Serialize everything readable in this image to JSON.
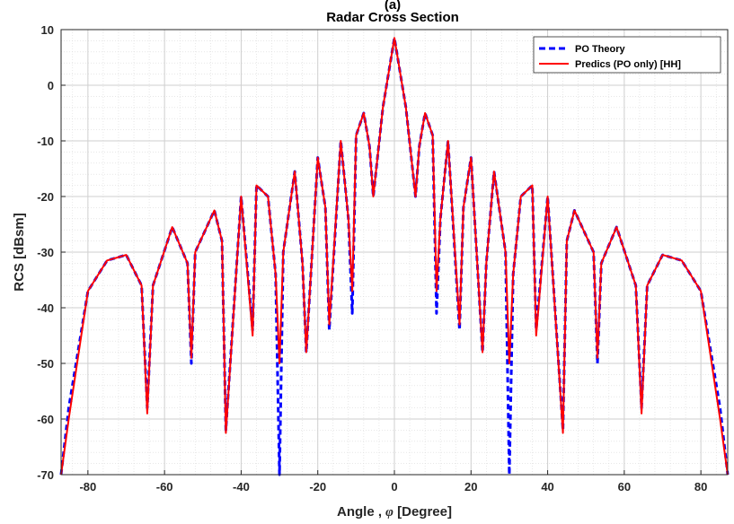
{
  "chart_data": {
    "type": "line",
    "top_label": "(a)",
    "title": "Radar Cross Section",
    "xlabel_prefix": "Angle , ",
    "xlabel_symbol": "φ",
    "xlabel_suffix": "  [Degree]",
    "ylabel": "RCS [dBsm]",
    "xlim": [
      -87,
      87
    ],
    "ylim": [
      -70,
      10
    ],
    "xticks": [
      -80,
      -60,
      -40,
      -20,
      0,
      20,
      40,
      60,
      80
    ],
    "yticks": [
      10,
      0,
      -10,
      -20,
      -30,
      -40,
      -50,
      -60,
      -70
    ],
    "grid": true,
    "minor_grid": true,
    "legend_position": "top-right",
    "series": [
      {
        "name": "PO Theory",
        "color": "#0000ff",
        "style": "dashed",
        "x": [
          -87,
          -85,
          -80,
          -75,
          -70,
          -66,
          -64.5,
          -63,
          -58,
          -54,
          -53,
          -52,
          -47,
          -45,
          -44,
          -40,
          -37,
          -36,
          -33,
          -31,
          -30,
          -29,
          -26,
          -24,
          -23,
          -20,
          -18,
          -17,
          -14,
          -12,
          -11,
          -10,
          -8,
          -6.5,
          -5.5,
          -3,
          0,
          3,
          5.5,
          6.5,
          8,
          10,
          11,
          12,
          14,
          17,
          18,
          20,
          23,
          24,
          26,
          29,
          30,
          31,
          33,
          36,
          37,
          40,
          44,
          45,
          47,
          52,
          53,
          54,
          58,
          63,
          64.5,
          66,
          70,
          75,
          80,
          85,
          87
        ],
        "y": [
          -70,
          -58,
          -37,
          -31.5,
          -30.5,
          -36,
          -58,
          -36,
          -25.5,
          -32,
          -50,
          -30,
          -22.5,
          -28,
          -62,
          -20,
          -44,
          -18,
          -20,
          -34,
          -70,
          -30,
          -15.5,
          -32,
          -48,
          -13,
          -22,
          -44,
          -10,
          -24,
          -41,
          -9,
          -5,
          -11,
          -20,
          -4,
          8.5,
          -4,
          -20,
          -11,
          -5,
          -9,
          -41,
          -24,
          -10,
          -44,
          -22,
          -13,
          -48,
          -32,
          -15.5,
          -30,
          -70,
          -34,
          -20,
          -18,
          -44,
          -20,
          -62,
          -28,
          -22.5,
          -30,
          -50,
          -32,
          -25.5,
          -36,
          -58,
          -36,
          -30.5,
          -31.5,
          -37,
          -58,
          -70
        ]
      },
      {
        "name": "Predics (PO only) [HH]",
        "color": "#ff0000",
        "style": "solid",
        "x": [
          -87,
          -85,
          -80,
          -75,
          -70,
          -66,
          -64.5,
          -63,
          -58,
          -54,
          -53,
          -52,
          -47,
          -45,
          -44,
          -40,
          -37,
          -36,
          -33,
          -31,
          -30,
          -29,
          -26,
          -24,
          -23,
          -20,
          -18,
          -17,
          -14,
          -12,
          -11,
          -10,
          -8,
          -6.5,
          -5.5,
          -3,
          0,
          3,
          5.5,
          6.5,
          8,
          10,
          11,
          12,
          14,
          17,
          18,
          20,
          23,
          24,
          26,
          29,
          30,
          31,
          33,
          36,
          37,
          40,
          44,
          45,
          47,
          52,
          53,
          54,
          58,
          63,
          64.5,
          66,
          70,
          75,
          80,
          85,
          87
        ],
        "y": [
          -70,
          -60,
          -37,
          -31.5,
          -30.5,
          -36,
          -59,
          -36,
          -25.5,
          -32,
          -49,
          -30,
          -22.5,
          -28,
          -62.5,
          -20,
          -45,
          -18,
          -20,
          -34,
          -50,
          -30,
          -15.5,
          -32,
          -48,
          -13,
          -22,
          -43,
          -10,
          -24,
          -37,
          -9,
          -5,
          -11,
          -20,
          -4,
          8.5,
          -4,
          -20,
          -11,
          -5,
          -9,
          -37,
          -24,
          -10,
          -43,
          -22,
          -13,
          -48,
          -32,
          -15.5,
          -30,
          -50,
          -34,
          -20,
          -18,
          -45,
          -20,
          -62.5,
          -28,
          -22.5,
          -30,
          -49,
          -32,
          -25.5,
          -36,
          -59,
          -36,
          -30.5,
          -31.5,
          -37,
          -60,
          -70
        ]
      }
    ]
  }
}
